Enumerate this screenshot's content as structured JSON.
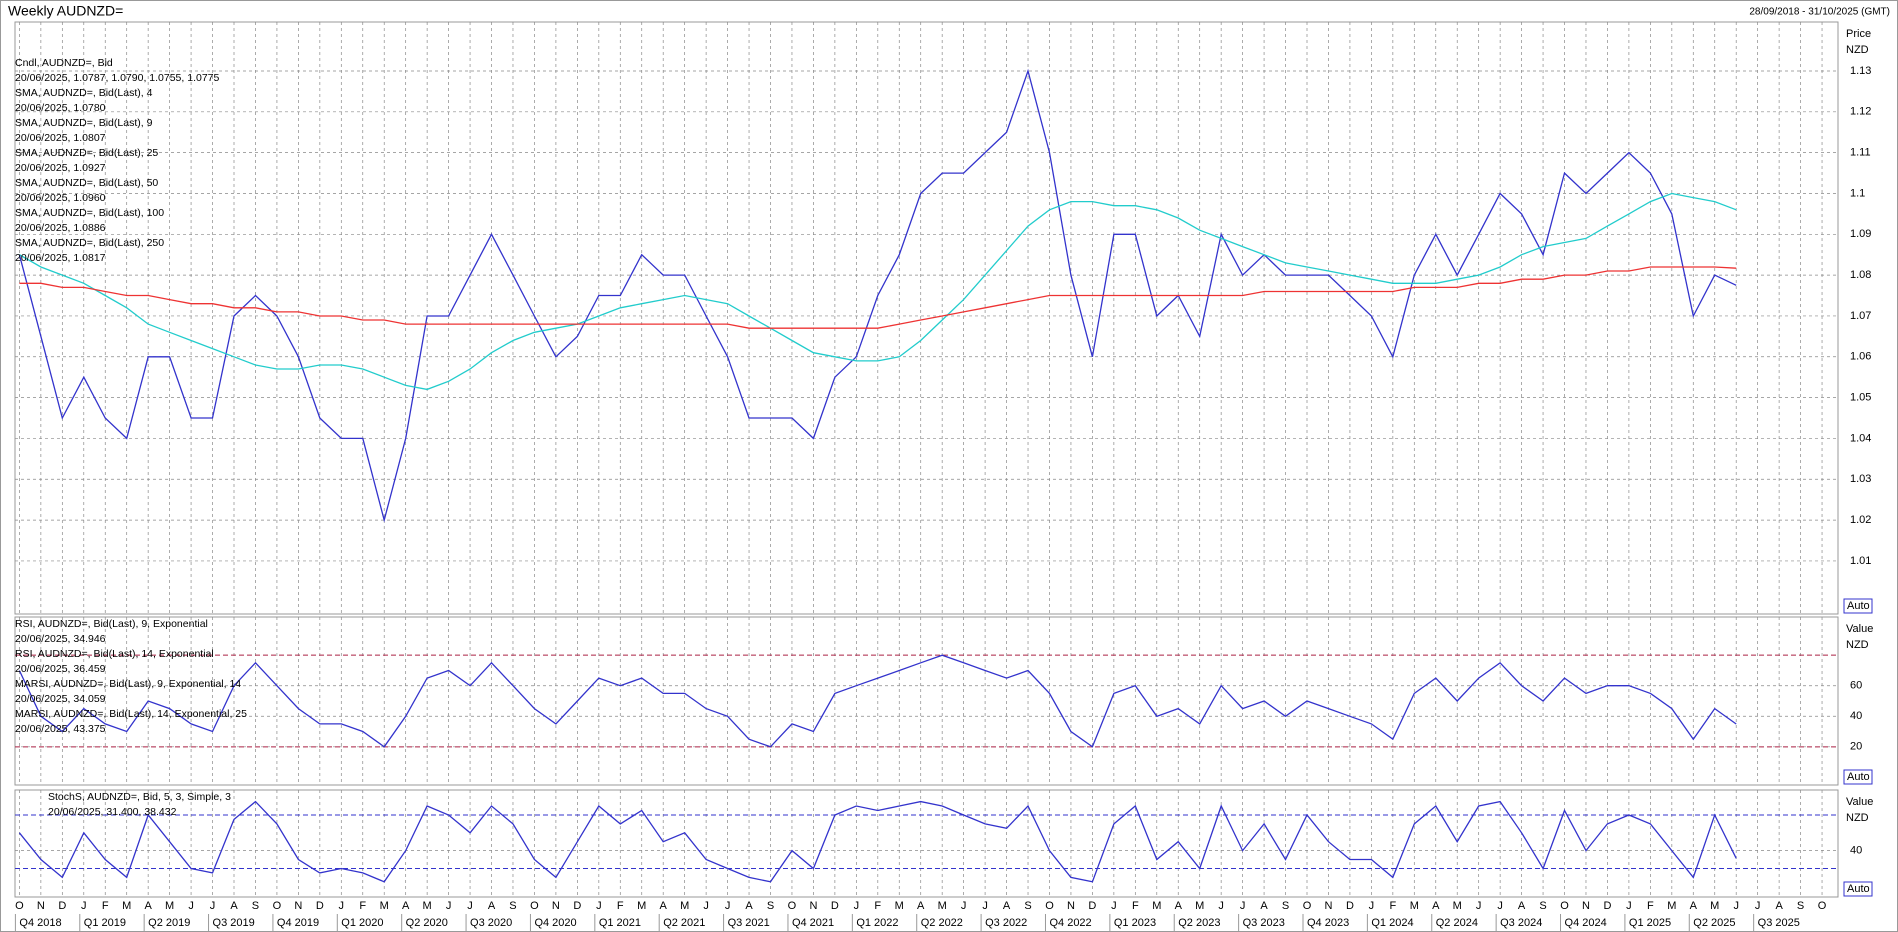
{
  "header": {
    "title": "Weekly AUDNZD=",
    "range": "28/09/2018 - 31/10/2025 (GMT)"
  },
  "chart_data": [
    {
      "type": "line",
      "axis_title": [
        "Price",
        "NZD"
      ],
      "auto_button": "Auto",
      "categories": [
        "O",
        "N",
        "D",
        "J",
        "F",
        "M",
        "A",
        "M",
        "J",
        "J",
        "A",
        "S",
        "O",
        "N",
        "D",
        "J",
        "F",
        "M",
        "A",
        "M",
        "J",
        "J",
        "A",
        "S",
        "O",
        "N",
        "D",
        "J",
        "F",
        "M",
        "A",
        "M",
        "J",
        "J",
        "A",
        "S",
        "O",
        "N",
        "D",
        "J",
        "F",
        "M",
        "A",
        "M",
        "J",
        "J",
        "A",
        "S",
        "O",
        "N",
        "D",
        "J",
        "F",
        "M",
        "A",
        "M",
        "J",
        "J",
        "A",
        "S",
        "O",
        "N",
        "D",
        "J",
        "F",
        "M",
        "A",
        "M",
        "J",
        "J",
        "A",
        "S",
        "O",
        "N",
        "D",
        "J",
        "F",
        "M",
        "A",
        "M",
        "J",
        "J",
        "A",
        "S",
        "O"
      ],
      "quarters": [
        "Q4 2018",
        "Q1 2019",
        "Q2 2019",
        "Q3 2019",
        "Q4 2019",
        "Q1 2020",
        "Q2 2020",
        "Q3 2020",
        "Q4 2020",
        "Q1 2021",
        "Q2 2021",
        "Q3 2021",
        "Q4 2021",
        "Q1 2022",
        "Q2 2022",
        "Q3 2022",
        "Q4 2022",
        "Q1 2023",
        "Q2 2023",
        "Q3 2023",
        "Q4 2023",
        "Q1 2024",
        "Q2 2024",
        "Q3 2024",
        "Q4 2024",
        "Q1 2025",
        "Q2 2025",
        "Q3 2025"
      ],
      "ylim": [
        0.997,
        1.142
      ],
      "yticks": [
        1.01,
        1.02,
        1.03,
        1.04,
        1.05,
        1.06,
        1.07,
        1.08,
        1.09,
        1.1,
        1.11,
        1.12,
        1.13
      ],
      "grid": true,
      "legend": [
        {
          "text": "Cndl, AUDNZD=, Bid",
          "color": "#3333cc"
        },
        {
          "text": "20/06/2025, 1.0787, 1.0790, 1.0755, 1.0775",
          "color": "#3333cc"
        },
        {
          "text": "SMA, AUDNZD=, Bid(Last), 4",
          "color": "#e020e0"
        },
        {
          "text": "20/06/2025, 1.0780",
          "color": "#e020e0"
        },
        {
          "text": "SMA, AUDNZD=, Bid(Last), 9",
          "color": "#22bb22"
        },
        {
          "text": "20/06/2025, 1.0807",
          "color": "#22bb22"
        },
        {
          "text": "SMA, AUDNZD=, Bid(Last), 25",
          "color": "#990022"
        },
        {
          "text": "20/06/2025, 1.0927",
          "color": "#990022"
        },
        {
          "text": "SMA, AUDNZD=, Bid(Last), 50",
          "color": "#22cccc"
        },
        {
          "text": "20/06/2025, 1.0960",
          "color": "#22cccc"
        },
        {
          "text": "SMA, AUDNZD=, Bid(Last), 100",
          "color": "#116611"
        },
        {
          "text": "20/06/2025, 1.0886",
          "color": "#116611"
        },
        {
          "text": "SMA, AUDNZD=, Bid(Last), 250",
          "color": "#ee3333"
        },
        {
          "text": "20/06/2025, 1.0817",
          "color": "#ee3333"
        }
      ],
      "series": [
        {
          "name": "Cndl",
          "color": "#3333cc",
          "values": [
            1.085,
            1.065,
            1.045,
            1.055,
            1.045,
            1.04,
            1.06,
            1.06,
            1.045,
            1.045,
            1.07,
            1.075,
            1.07,
            1.06,
            1.045,
            1.04,
            1.04,
            1.02,
            1.04,
            1.07,
            1.07,
            1.08,
            1.09,
            1.08,
            1.07,
            1.06,
            1.065,
            1.075,
            1.075,
            1.085,
            1.08,
            1.08,
            1.07,
            1.06,
            1.045,
            1.045,
            1.045,
            1.04,
            1.055,
            1.06,
            1.075,
            1.085,
            1.1,
            1.105,
            1.105,
            1.11,
            1.115,
            1.13,
            1.11,
            1.08,
            1.06,
            1.09,
            1.09,
            1.07,
            1.075,
            1.065,
            1.09,
            1.08,
            1.085,
            1.08,
            1.08,
            1.08,
            1.075,
            1.07,
            1.06,
            1.08,
            1.09,
            1.08,
            1.09,
            1.1,
            1.095,
            1.085,
            1.105,
            1.1,
            1.105,
            1.11,
            1.105,
            1.095,
            1.07,
            1.08,
            1.0775,
            null,
            null,
            null,
            null
          ]
        },
        {
          "name": "SMA 50",
          "color": "#22cccc",
          "values": [
            1.085,
            1.082,
            1.08,
            1.078,
            1.075,
            1.072,
            1.068,
            1.066,
            1.064,
            1.062,
            1.06,
            1.058,
            1.057,
            1.057,
            1.058,
            1.058,
            1.057,
            1.055,
            1.053,
            1.052,
            1.054,
            1.057,
            1.061,
            1.064,
            1.066,
            1.067,
            1.068,
            1.07,
            1.072,
            1.073,
            1.074,
            1.075,
            1.074,
            1.073,
            1.07,
            1.067,
            1.064,
            1.061,
            1.06,
            1.059,
            1.059,
            1.06,
            1.064,
            1.069,
            1.074,
            1.08,
            1.086,
            1.092,
            1.096,
            1.098,
            1.098,
            1.097,
            1.097,
            1.096,
            1.094,
            1.091,
            1.089,
            1.087,
            1.085,
            1.083,
            1.082,
            1.081,
            1.08,
            1.079,
            1.078,
            1.078,
            1.078,
            1.079,
            1.08,
            1.082,
            1.085,
            1.087,
            1.088,
            1.089,
            1.092,
            1.095,
            1.098,
            1.1,
            1.099,
            1.098,
            1.096,
            null,
            null,
            null,
            null
          ]
        },
        {
          "name": "SMA 250",
          "color": "#ee3333",
          "values": [
            1.078,
            1.078,
            1.077,
            1.077,
            1.076,
            1.075,
            1.075,
            1.074,
            1.073,
            1.073,
            1.072,
            1.072,
            1.071,
            1.071,
            1.07,
            1.07,
            1.069,
            1.069,
            1.068,
            1.068,
            1.068,
            1.068,
            1.068,
            1.068,
            1.068,
            1.068,
            1.068,
            1.068,
            1.068,
            1.068,
            1.068,
            1.068,
            1.068,
            1.068,
            1.067,
            1.067,
            1.067,
            1.067,
            1.067,
            1.067,
            1.067,
            1.068,
            1.069,
            1.07,
            1.071,
            1.072,
            1.073,
            1.074,
            1.075,
            1.075,
            1.075,
            1.075,
            1.075,
            1.075,
            1.075,
            1.075,
            1.075,
            1.075,
            1.076,
            1.076,
            1.076,
            1.076,
            1.076,
            1.076,
            1.076,
            1.077,
            1.077,
            1.077,
            1.078,
            1.078,
            1.079,
            1.079,
            1.08,
            1.08,
            1.081,
            1.081,
            1.082,
            1.082,
            1.082,
            1.082,
            1.0817,
            null,
            null,
            null,
            null
          ]
        }
      ]
    },
    {
      "type": "line",
      "axis_title": [
        "Value",
        "NZD"
      ],
      "auto_button": "Auto",
      "ylim": [
        -5,
        105
      ],
      "yticks": [
        20,
        40,
        60
      ],
      "levels": [
        20,
        80
      ],
      "grid": true,
      "legend": [
        {
          "text": "RSI, AUDNZD=, Bid(Last), 9, Exponential",
          "color": "#3333cc"
        },
        {
          "text": "20/06/2025, 34.946",
          "color": "#3333cc"
        },
        {
          "text": "RSI, AUDNZD=, Bid(Last), 14, Exponential",
          "color": "#e020e0"
        },
        {
          "text": "20/06/2025, 36.459",
          "color": "#e020e0"
        },
        {
          "text": "MARSI, AUDNZD=, Bid(Last), 9, Exponential, 14",
          "color": "#22bb22"
        },
        {
          "text": "20/06/2025, 34.059",
          "color": "#22bb22"
        },
        {
          "text": "MARSI, AUDNZD=, Bid(Last), 14, Exponential, 25",
          "color": "#990022"
        },
        {
          "text": "20/06/2025, 43.375",
          "color": "#990022"
        }
      ],
      "series": [
        {
          "name": "RSI 9",
          "color": "#3333cc",
          "values": [
            70,
            40,
            30,
            45,
            35,
            30,
            50,
            45,
            35,
            30,
            60,
            75,
            60,
            45,
            35,
            35,
            30,
            20,
            40,
            65,
            70,
            60,
            75,
            60,
            45,
            35,
            50,
            65,
            60,
            65,
            55,
            55,
            45,
            40,
            25,
            20,
            35,
            30,
            55,
            60,
            65,
            70,
            75,
            80,
            75,
            70,
            65,
            70,
            55,
            30,
            20,
            55,
            60,
            40,
            45,
            35,
            60,
            45,
            50,
            40,
            50,
            45,
            40,
            35,
            25,
            55,
            65,
            50,
            65,
            75,
            60,
            50,
            65,
            55,
            60,
            60,
            55,
            45,
            25,
            45,
            34.946,
            null,
            null,
            null,
            null
          ]
        }
      ]
    },
    {
      "type": "line",
      "axis_title": [
        "Value",
        "NZD"
      ],
      "auto_button": "Auto",
      "ylim": [
        -12,
        108
      ],
      "yticks": [
        40
      ],
      "levels": [
        20,
        80
      ],
      "grid": true,
      "legend": [
        {
          "text": "StochS, AUDNZD=, Bid, 5, 3, Simple, 3",
          "color": "#3333cc"
        },
        {
          "text": "20/06/2025, 31.400, 38.432",
          "color": "#3333cc"
        }
      ],
      "series": [
        {
          "name": "StochS",
          "color": "#3333cc",
          "values": [
            60,
            30,
            10,
            60,
            30,
            10,
            80,
            50,
            20,
            15,
            75,
            95,
            70,
            30,
            15,
            20,
            15,
            5,
            40,
            90,
            80,
            60,
            90,
            70,
            30,
            10,
            50,
            90,
            70,
            85,
            50,
            60,
            30,
            20,
            10,
            5,
            40,
            20,
            80,
            90,
            85,
            90,
            95,
            90,
            80,
            70,
            65,
            90,
            40,
            10,
            5,
            70,
            90,
            30,
            50,
            20,
            90,
            40,
            70,
            30,
            80,
            50,
            30,
            30,
            10,
            70,
            90,
            50,
            90,
            95,
            60,
            20,
            85,
            40,
            70,
            80,
            70,
            40,
            10,
            80,
            31.4,
            null,
            null,
            null,
            null
          ]
        }
      ]
    }
  ]
}
